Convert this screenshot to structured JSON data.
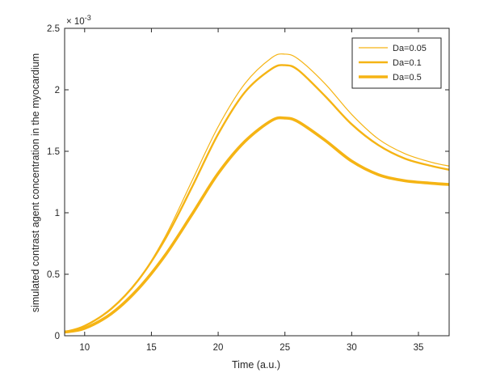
{
  "chart_data": {
    "type": "line",
    "title": "",
    "xlabel": "Time (a.u.)",
    "ylabel": "simulated contrast agent concentration in the myocardium",
    "exponent_label": "× 10^-3",
    "exponent_base": "× 10",
    "exponent_power": "-3",
    "xlim": [
      8.5,
      37.3
    ],
    "ylim": [
      0,
      2.5
    ],
    "y_scale_factor": 0.001,
    "xticks": [
      10,
      15,
      20,
      25,
      30,
      35
    ],
    "xtick_labels": [
      "10",
      "15",
      "20",
      "25",
      "30",
      "35"
    ],
    "yticks": [
      0,
      0.5,
      1,
      1.5,
      2,
      2.5
    ],
    "ytick_labels": [
      "0",
      "0.5",
      "1",
      "1.5",
      "2",
      "2.5"
    ],
    "grid": false,
    "legend_position": "top-right",
    "x": [
      8.5,
      10,
      12,
      14,
      16,
      18,
      20,
      22,
      24,
      25,
      26,
      28,
      30,
      32,
      34,
      36,
      37.3
    ],
    "series": [
      {
        "name": "Da=0.05",
        "color": "#f5b414",
        "line_weight": "thin",
        "values": [
          0.03,
          0.08,
          0.22,
          0.45,
          0.8,
          1.25,
          1.7,
          2.05,
          2.26,
          2.29,
          2.25,
          2.05,
          1.8,
          1.6,
          1.48,
          1.41,
          1.38
        ]
      },
      {
        "name": "Da=0.1",
        "color": "#f5b414",
        "line_weight": "medium",
        "values": [
          0.03,
          0.08,
          0.22,
          0.45,
          0.78,
          1.2,
          1.64,
          1.98,
          2.17,
          2.2,
          2.16,
          1.95,
          1.72,
          1.55,
          1.44,
          1.38,
          1.35
        ]
      },
      {
        "name": "Da=0.5",
        "color": "#f5b414",
        "line_weight": "thick",
        "values": [
          0.03,
          0.06,
          0.18,
          0.38,
          0.65,
          0.98,
          1.32,
          1.58,
          1.75,
          1.77,
          1.74,
          1.59,
          1.42,
          1.31,
          1.26,
          1.24,
          1.23
        ]
      }
    ]
  }
}
